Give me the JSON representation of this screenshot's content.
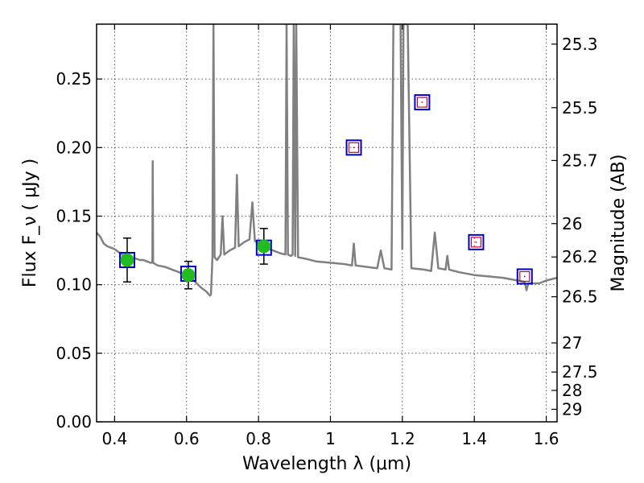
{
  "chart_data": {
    "type": "scatter",
    "xlabel": "Wavelength  λ (μm)",
    "ylabel": "Flux  F_ν  ( μJy )",
    "y2label": "Magnitude (AB)",
    "xlim": [
      0.35,
      1.63
    ],
    "ylim": [
      0.0,
      0.29
    ],
    "grid": true,
    "grid_style": "dotted",
    "x_ticks": [
      {
        "value": 0.4,
        "label": "0.4"
      },
      {
        "value": 0.6,
        "label": "0.6"
      },
      {
        "value": 0.8,
        "label": "0.8"
      },
      {
        "value": 1.0,
        "label": "1"
      },
      {
        "value": 1.2,
        "label": "1.2"
      },
      {
        "value": 1.4,
        "label": "1.4"
      },
      {
        "value": 1.6,
        "label": "1.6"
      }
    ],
    "y_ticks": [
      {
        "value": 0.0,
        "label": "0.00"
      },
      {
        "value": 0.05,
        "label": "0.05"
      },
      {
        "value": 0.1,
        "label": "0.10"
      },
      {
        "value": 0.15,
        "label": "0.15"
      },
      {
        "value": 0.2,
        "label": "0.20"
      },
      {
        "value": 0.25,
        "label": "0.25"
      }
    ],
    "y2_ticks": [
      {
        "value": 25.3,
        "label": "25.3"
      },
      {
        "value": 25.5,
        "label": "25.5"
      },
      {
        "value": 25.7,
        "label": "25.7"
      },
      {
        "value": 26,
        "label": "26"
      },
      {
        "value": 26.2,
        "label": "26.2"
      },
      {
        "value": 26.5,
        "label": "26.5"
      },
      {
        "value": 27,
        "label": "27"
      },
      {
        "value": 27.5,
        "label": "27.5"
      },
      {
        "value": 28,
        "label": "28"
      },
      {
        "value": 29,
        "label": "29"
      }
    ],
    "colors": {
      "spectrum": "#808080",
      "observed_fill": "#22bb22",
      "model_box": "#0000cc",
      "upper_limit_box": "#cc0033",
      "error_bar": "#000000",
      "grid": "#555555"
    },
    "series": [
      {
        "kind": "spectrum",
        "points": [
          [
            0.35,
            0.138
          ],
          [
            0.36,
            0.135
          ],
          [
            0.37,
            0.13
          ],
          [
            0.38,
            0.128
          ],
          [
            0.39,
            0.127
          ],
          [
            0.4,
            0.126
          ],
          [
            0.41,
            0.124
          ],
          [
            0.42,
            0.122
          ],
          [
            0.43,
            0.121
          ],
          [
            0.44,
            0.12
          ],
          [
            0.45,
            0.119
          ],
          [
            0.46,
            0.119
          ],
          [
            0.47,
            0.118
          ],
          [
            0.48,
            0.118
          ],
          [
            0.49,
            0.117
          ],
          [
            0.5,
            0.116
          ],
          [
            0.505,
            0.116
          ],
          [
            0.506,
            0.19
          ],
          [
            0.507,
            0.116
          ],
          [
            0.52,
            0.114
          ],
          [
            0.54,
            0.113
          ],
          [
            0.56,
            0.111
          ],
          [
            0.58,
            0.109
          ],
          [
            0.6,
            0.106
          ],
          [
            0.62,
            0.103
          ],
          [
            0.64,
            0.098
          ],
          [
            0.655,
            0.095
          ],
          [
            0.665,
            0.092
          ],
          [
            0.668,
            0.093
          ],
          [
            0.672,
            0.12
          ],
          [
            0.675,
            0.29
          ],
          [
            0.678,
            0.12
          ],
          [
            0.685,
            0.118
          ],
          [
            0.695,
            0.122
          ],
          [
            0.7,
            0.15
          ],
          [
            0.705,
            0.122
          ],
          [
            0.72,
            0.125
          ],
          [
            0.735,
            0.127
          ],
          [
            0.74,
            0.18
          ],
          [
            0.745,
            0.128
          ],
          [
            0.76,
            0.131
          ],
          [
            0.775,
            0.133
          ],
          [
            0.783,
            0.16
          ],
          [
            0.79,
            0.132
          ],
          [
            0.8,
            0.13
          ],
          [
            0.82,
            0.127
          ],
          [
            0.84,
            0.125
          ],
          [
            0.86,
            0.123
          ],
          [
            0.875,
            0.122
          ],
          [
            0.878,
            0.29
          ],
          [
            0.882,
            0.122
          ],
          [
            0.89,
            0.121
          ],
          [
            0.895,
            0.122
          ],
          [
            0.898,
            0.29
          ],
          [
            0.902,
            0.121
          ],
          [
            0.905,
            0.29
          ],
          [
            0.91,
            0.12
          ],
          [
            0.93,
            0.119
          ],
          [
            0.96,
            0.117
          ],
          [
            1.0,
            0.116
          ],
          [
            1.04,
            0.115
          ],
          [
            1.06,
            0.114
          ],
          [
            1.065,
            0.13
          ],
          [
            1.07,
            0.114
          ],
          [
            1.1,
            0.113
          ],
          [
            1.13,
            0.112
          ],
          [
            1.14,
            0.125
          ],
          [
            1.15,
            0.112
          ],
          [
            1.17,
            0.111
          ],
          [
            1.175,
            0.29
          ],
          [
            1.195,
            0.29
          ],
          [
            1.2,
            0.126
          ],
          [
            1.203,
            0.29
          ],
          [
            1.215,
            0.29
          ],
          [
            1.225,
            0.112
          ],
          [
            1.26,
            0.111
          ],
          [
            1.28,
            0.11
          ],
          [
            1.29,
            0.138
          ],
          [
            1.3,
            0.112
          ],
          [
            1.32,
            0.111
          ],
          [
            1.325,
            0.121
          ],
          [
            1.33,
            0.111
          ],
          [
            1.36,
            0.109
          ],
          [
            1.4,
            0.107
          ],
          [
            1.44,
            0.106
          ],
          [
            1.48,
            0.105
          ],
          [
            1.52,
            0.103
          ],
          [
            1.54,
            0.102
          ],
          [
            1.545,
            0.096
          ],
          [
            1.55,
            0.101
          ],
          [
            1.58,
            0.101
          ],
          [
            1.6,
            0.103
          ],
          [
            1.63,
            0.105
          ]
        ]
      },
      {
        "kind": "observed",
        "points": [
          {
            "x": 0.435,
            "y": 0.118,
            "err": 0.016
          },
          {
            "x": 0.605,
            "y": 0.107,
            "err": 0.01
          },
          {
            "x": 0.815,
            "y": 0.128,
            "err": 0.013
          }
        ]
      },
      {
        "kind": "model_photometry",
        "points": [
          {
            "x": 0.435,
            "y": 0.118
          },
          {
            "x": 0.605,
            "y": 0.108
          },
          {
            "x": 0.815,
            "y": 0.127
          },
          {
            "x": 1.065,
            "y": 0.2
          },
          {
            "x": 1.255,
            "y": 0.233
          },
          {
            "x": 1.405,
            "y": 0.131
          },
          {
            "x": 1.54,
            "y": 0.106
          }
        ]
      },
      {
        "kind": "upper_limits",
        "points": [
          {
            "x": 1.065,
            "y": 0.2
          },
          {
            "x": 1.255,
            "y": 0.233
          },
          {
            "x": 1.405,
            "y": 0.131
          },
          {
            "x": 1.54,
            "y": 0.106
          }
        ]
      }
    ]
  }
}
